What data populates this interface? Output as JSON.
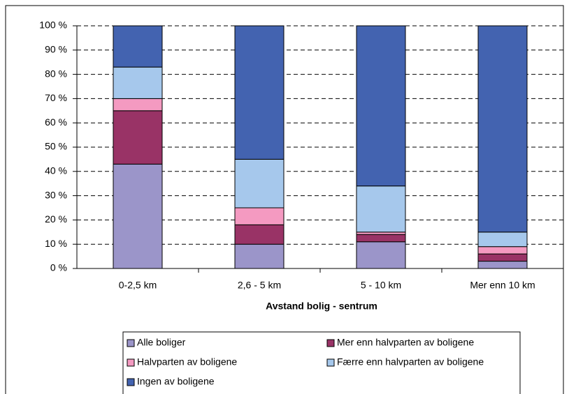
{
  "chart_data": {
    "type": "stacked_bar",
    "x_label": "Avstand bolig - sentrum",
    "categories": [
      "0-2,5 km",
      "2,6 - 5 km",
      "5 - 10 km",
      "Mer enn 10 km"
    ],
    "series": [
      {
        "name": "Alle boliger",
        "color": "#9b95c9",
        "values": [
          43,
          10,
          11,
          3
        ]
      },
      {
        "name": "Mer enn halvparten av boligene",
        "color": "#993366",
        "values": [
          22,
          8,
          3,
          3
        ]
      },
      {
        "name": "Halvparten av boligene",
        "color": "#f49ac1",
        "values": [
          5,
          7,
          1,
          3
        ]
      },
      {
        "name": "Færre enn halvparten av boligene",
        "color": "#a6c8ec",
        "values": [
          13,
          20,
          19,
          6
        ]
      },
      {
        "name": "Ingen av boligene",
        "color": "#4363b0",
        "values": [
          17,
          55,
          66,
          85
        ]
      }
    ],
    "ylim": [
      0,
      100
    ],
    "yticks": [
      {
        "value": 0,
        "label": "0 %"
      },
      {
        "value": 10,
        "label": "10 %"
      },
      {
        "value": 20,
        "label": "20 %"
      },
      {
        "value": 30,
        "label": "30 %"
      },
      {
        "value": 40,
        "label": "40 %"
      },
      {
        "value": 50,
        "label": "50 %"
      },
      {
        "value": 60,
        "label": "60 %"
      },
      {
        "value": 70,
        "label": "70 %"
      },
      {
        "value": 80,
        "label": "80 %"
      },
      {
        "value": 90,
        "label": "90 %"
      },
      {
        "value": 100,
        "label": "100 %"
      }
    ],
    "grid": true
  }
}
